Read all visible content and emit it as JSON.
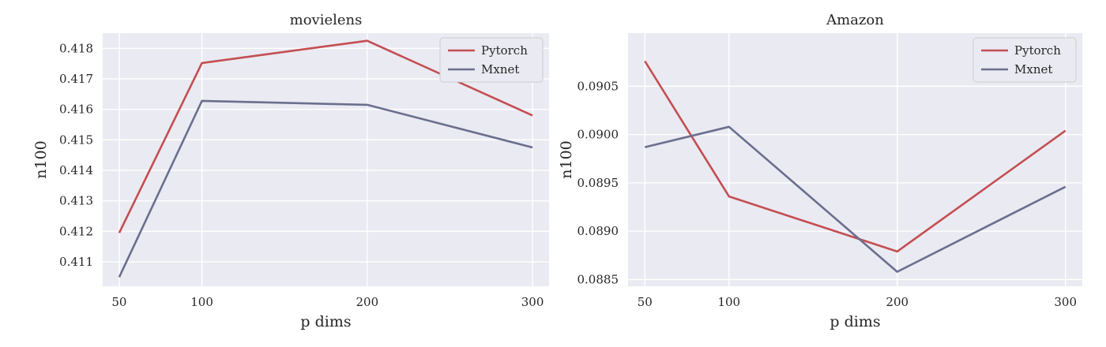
{
  "chart_data": [
    {
      "type": "line",
      "title": "movielens",
      "xlabel": "p dims",
      "ylabel": "n100",
      "x": [
        50,
        100,
        200,
        300
      ],
      "xticks": [
        "50",
        "100",
        "200",
        "300"
      ],
      "xlim": [
        40,
        310
      ],
      "ylim": [
        0.4102,
        0.4185
      ],
      "yticks": [
        0.411,
        0.412,
        0.413,
        0.414,
        0.415,
        0.416,
        0.417,
        0.418
      ],
      "yticklabels": [
        "0.411",
        "0.412",
        "0.413",
        "0.414",
        "0.415",
        "0.416",
        "0.417",
        "0.418"
      ],
      "grid": true,
      "legend": "top-right",
      "series": [
        {
          "name": "Pytorch",
          "color": "#c44e52",
          "values": [
            0.41195,
            0.41752,
            0.41825,
            0.4158
          ]
        },
        {
          "name": "Mxnet",
          "color": "#6a6f8e",
          "values": [
            0.4105,
            0.41628,
            0.41615,
            0.41475
          ]
        }
      ]
    },
    {
      "type": "line",
      "title": "Amazon",
      "xlabel": "p dims",
      "ylabel": "n100",
      "x": [
        50,
        100,
        200,
        300
      ],
      "xticks": [
        "50",
        "100",
        "200",
        "300"
      ],
      "xlim": [
        40,
        310
      ],
      "ylim": [
        0.08843,
        0.09105
      ],
      "yticks": [
        0.0885,
        0.089,
        0.0895,
        0.09,
        0.0905
      ],
      "yticklabels": [
        "0.0885",
        "0.0890",
        "0.0895",
        "0.0900",
        "0.0905"
      ],
      "grid": true,
      "legend": "top-right",
      "series": [
        {
          "name": "Pytorch",
          "color": "#c44e52",
          "values": [
            0.09076,
            0.08936,
            0.08879,
            0.09004
          ]
        },
        {
          "name": "Mxnet",
          "color": "#6a6f8e",
          "values": [
            0.08987,
            0.09008,
            0.08858,
            0.08946
          ]
        }
      ]
    }
  ]
}
